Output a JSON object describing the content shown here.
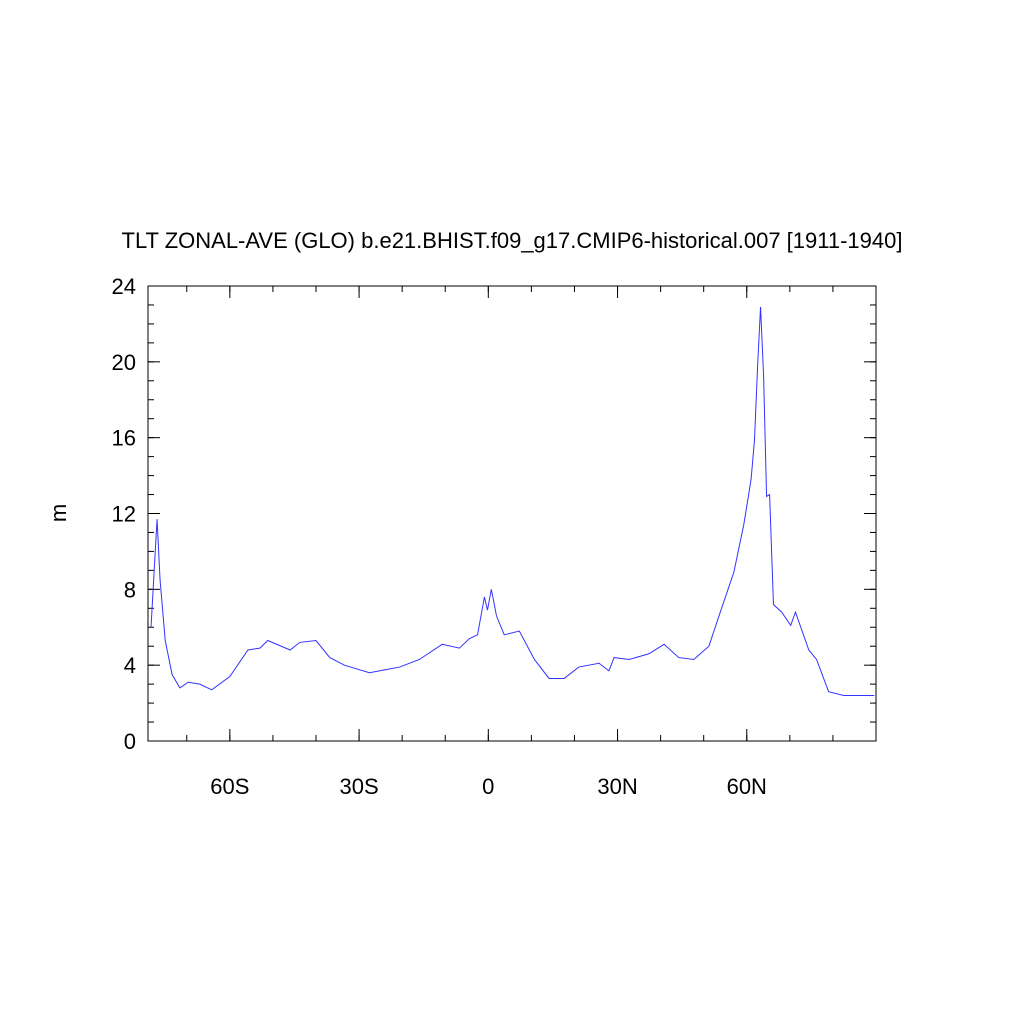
{
  "chart_data": {
    "type": "line",
    "title": "TLT ZONAL-AVE (GLO) b.e21.BHIST.f09_g17.CMIP6-historical.007 [1911-1940]",
    "ylabel": "m",
    "x": [
      -78.3,
      -76.9,
      -76.2,
      -75,
      -73.4,
      -71.6,
      -69.7,
      -67,
      -64.2,
      -60,
      -55.8,
      -53,
      -51.2,
      -46,
      -43.8,
      -40,
      -36.8,
      -33.4,
      -27.6,
      -20.6,
      -16,
      -10.7,
      -6.7,
      -4.4,
      -2.5,
      -0.9,
      -0.2,
      0.7,
      1.9,
      3.7,
      7.2,
      10.7,
      14.1,
      17.6,
      21,
      25.7,
      28,
      29.2,
      32.7,
      37.3,
      40.8,
      44.2,
      47.7,
      51.2,
      54,
      57,
      59.3,
      61,
      61.8,
      62.5,
      63.2,
      63.9,
      64.6,
      65.3,
      66.2,
      68.1,
      70.2,
      71.3,
      74.4,
      76.2,
      79,
      82.5,
      89.6
    ],
    "series": [
      {
        "name": "TLT",
        "color": "#3333ff",
        "values": [
          6.0,
          11.7,
          8.5,
          5.3,
          3.5,
          2.8,
          3.1,
          3.0,
          2.7,
          3.4,
          4.8,
          4.9,
          5.3,
          4.8,
          5.2,
          5.3,
          4.4,
          4.0,
          3.6,
          3.9,
          4.3,
          5.1,
          4.9,
          5.4,
          5.6,
          7.6,
          6.9,
          8.0,
          6.6,
          5.6,
          5.8,
          4.3,
          3.3,
          3.3,
          3.9,
          4.1,
          3.7,
          4.4,
          4.3,
          4.6,
          5.1,
          4.4,
          4.3,
          5.0,
          6.9,
          8.9,
          11.4,
          13.8,
          15.9,
          19.7,
          22.9,
          19.3,
          12.9,
          13.0,
          7.2,
          6.8,
          6.1,
          6.8,
          4.8,
          4.3,
          2.6,
          2.4,
          2.4
        ]
      }
    ],
    "xlim": [
      -79,
      90
    ],
    "xticks": [
      {
        "value": -60,
        "label": "60S"
      },
      {
        "value": -30,
        "label": "30S"
      },
      0,
      {
        "value": 30,
        "label": "30N"
      },
      {
        "value": 60,
        "label": "60N"
      }
    ],
    "x_minor_step": 10,
    "ylim": [
      0,
      24
    ],
    "yticks": [
      0,
      4,
      8,
      12,
      16,
      20,
      24
    ],
    "y_minor_step": 1,
    "grid": false
  }
}
